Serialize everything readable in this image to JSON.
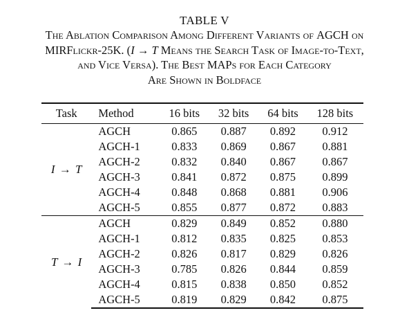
{
  "caption": {
    "table_label": "TABLE V",
    "line1": "The Ablation Comparison Among Different Variants of",
    "line1_agch": "AGCH",
    "line1_tail": "on",
    "line2_a": "MIRFlickr-25K. (",
    "line2_i": "I",
    "line2_arrow": "→",
    "line2_t": "T",
    "line2_b": "Means the Search Task of Image-to-Text,",
    "line3": "and Vice Versa). The Best",
    "line3_map": "MAP",
    "line3_tail": "s for Each Category",
    "line4": "Are Shown in Boldface"
  },
  "table": {
    "headers": [
      "Task",
      "Method",
      "16 bits",
      "32 bits",
      "64 bits",
      "128 bits"
    ],
    "groups": [
      {
        "task_from": "I",
        "task_arrow": "→",
        "task_to": "T",
        "rows": [
          {
            "method": "AGCH",
            "values": [
              "0.865",
              "0.887",
              "0.892",
              "0.912"
            ],
            "best": [
              true,
              true,
              true,
              true
            ]
          },
          {
            "method": "AGCH-1",
            "values": [
              "0.833",
              "0.869",
              "0.867",
              "0.881"
            ],
            "best": [
              false,
              false,
              false,
              false
            ]
          },
          {
            "method": "AGCH-2",
            "values": [
              "0.832",
              "0.840",
              "0.867",
              "0.867"
            ],
            "best": [
              false,
              false,
              false,
              false
            ]
          },
          {
            "method": "AGCH-3",
            "values": [
              "0.841",
              "0.872",
              "0.875",
              "0.899"
            ],
            "best": [
              false,
              false,
              false,
              false
            ]
          },
          {
            "method": "AGCH-4",
            "values": [
              "0.848",
              "0.868",
              "0.881",
              "0.906"
            ],
            "best": [
              false,
              false,
              false,
              false
            ]
          },
          {
            "method": "AGCH-5",
            "values": [
              "0.855",
              "0.877",
              "0.872",
              "0.883"
            ],
            "best": [
              false,
              false,
              false,
              false
            ]
          }
        ]
      },
      {
        "task_from": "T",
        "task_arrow": "→",
        "task_to": "I",
        "rows": [
          {
            "method": "AGCH",
            "values": [
              "0.829",
              "0.849",
              "0.852",
              "0.880"
            ],
            "best": [
              true,
              true,
              true,
              true
            ]
          },
          {
            "method": "AGCH-1",
            "values": [
              "0.812",
              "0.835",
              "0.825",
              "0.853"
            ],
            "best": [
              false,
              false,
              false,
              false
            ]
          },
          {
            "method": "AGCH-2",
            "values": [
              "0.826",
              "0.817",
              "0.829",
              "0.826"
            ],
            "best": [
              false,
              false,
              false,
              false
            ]
          },
          {
            "method": "AGCH-3",
            "values": [
              "0.785",
              "0.826",
              "0.844",
              "0.859"
            ],
            "best": [
              false,
              false,
              false,
              false
            ]
          },
          {
            "method": "AGCH-4",
            "values": [
              "0.815",
              "0.838",
              "0.850",
              "0.852"
            ],
            "best": [
              false,
              false,
              false,
              false
            ]
          },
          {
            "method": "AGCH-5",
            "values": [
              "0.819",
              "0.829",
              "0.842",
              "0.875"
            ],
            "best": [
              false,
              false,
              false,
              false
            ]
          }
        ]
      }
    ]
  }
}
